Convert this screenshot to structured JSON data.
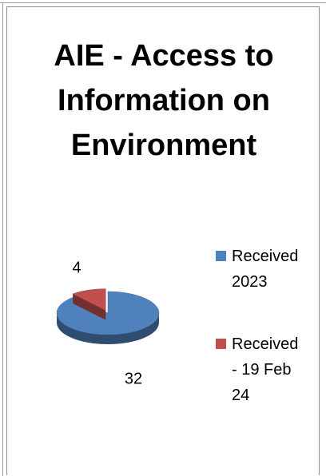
{
  "chart_data": {
    "type": "pie3d",
    "title": "AIE - Access to Information on Environment",
    "categories": [
      "Received 2023",
      "Received - 19 Feb 24"
    ],
    "values": [
      32,
      4
    ],
    "colors": [
      "#4f81bd",
      "#c0504d"
    ]
  }
}
